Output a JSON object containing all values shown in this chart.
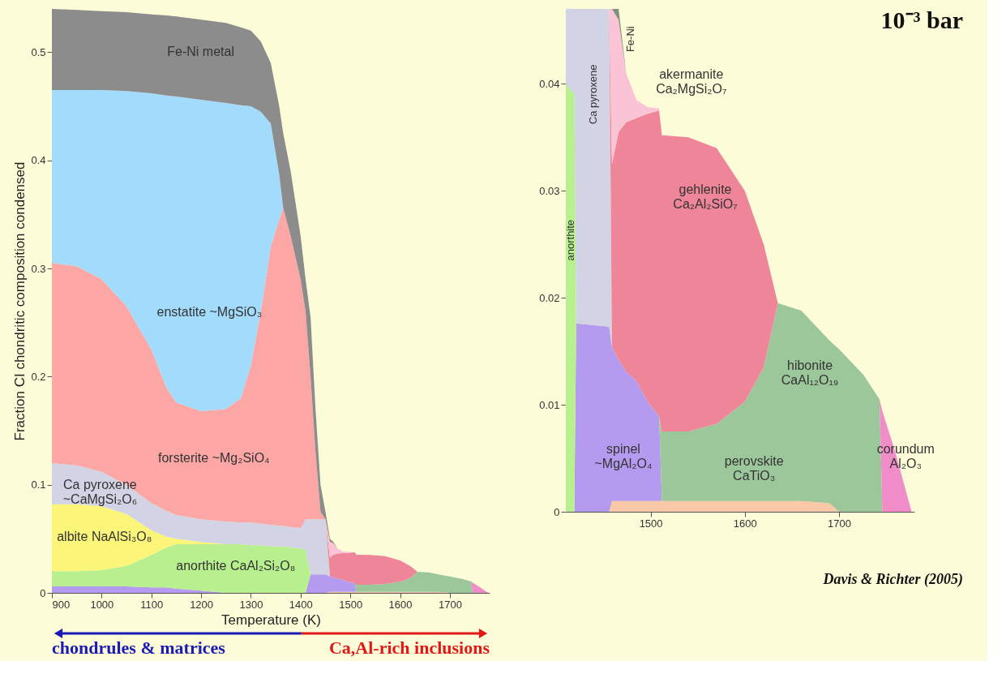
{
  "chart_data": [
    {
      "type": "area",
      "stacked": true,
      "xlabel": "Temperature (K)",
      "ylabel": "Fraction CI chondritic composition condensed",
      "x": [
        900,
        950,
        1000,
        1050,
        1100,
        1130,
        1150,
        1200,
        1250,
        1280,
        1300,
        1320,
        1340,
        1357,
        1365,
        1380,
        1400,
        1410,
        1420,
        1430,
        1440,
        1450,
        1459,
        1466,
        1474,
        1485,
        1497,
        1509,
        1512,
        1540,
        1570,
        1600,
        1620,
        1635,
        1660,
        1690,
        1700,
        1726,
        1743,
        1746,
        1760,
        1777
      ],
      "xlim": [
        900,
        1780
      ],
      "xticks": [
        900,
        1000,
        1100,
        1200,
        1300,
        1400,
        1500,
        1600,
        1700
      ],
      "ylim": [
        0,
        0.54
      ],
      "yticks": [
        0,
        0.1,
        0.2,
        0.3,
        0.4,
        0.5
      ],
      "series": [
        {
          "color": "#f8c8a8",
          "values": [
            null,
            null,
            null,
            null,
            null,
            null,
            null,
            null,
            null,
            null,
            null,
            null,
            null,
            null,
            null,
            null,
            null,
            null,
            null,
            null,
            null,
            0,
            0.001,
            0.001,
            0.001,
            0.001,
            0.001,
            0.001,
            0.001,
            0.001,
            0.001,
            0.001,
            0.001,
            0.001,
            0.001,
            0.0008,
            0,
            null,
            null,
            null,
            null,
            null
          ]
        },
        {
          "color": "#b49bef",
          "values": [
            0.006,
            0.006,
            0.006,
            0.006,
            0.005,
            0.005,
            0.004,
            0.002,
            0,
            null,
            null,
            null,
            null,
            null,
            null,
            null,
            null,
            0,
            0.017,
            0.017,
            0.017,
            0.017,
            0.0144,
            0.0132,
            0.0121,
            0.0112,
            0.0093,
            0.0079,
            0,
            null,
            null,
            null,
            null,
            null,
            null,
            null,
            null,
            null,
            null,
            null,
            null,
            null
          ]
        },
        {
          "color": "#9cc79a",
          "values": [
            null,
            null,
            null,
            null,
            null,
            null,
            null,
            null,
            null,
            null,
            null,
            null,
            null,
            null,
            null,
            null,
            null,
            null,
            null,
            null,
            null,
            null,
            null,
            null,
            null,
            null,
            null,
            0,
            0.0065,
            0.0065,
            0.0072,
            0.0093,
            0.0125,
            0.0185,
            0.0178,
            0.0152,
            0.0152,
            0.0128,
            0.0105,
            0,
            null,
            null
          ]
        },
        {
          "color": "#f08cc8",
          "values": [
            null,
            null,
            null,
            null,
            null,
            null,
            null,
            null,
            null,
            null,
            null,
            null,
            null,
            null,
            null,
            null,
            null,
            null,
            null,
            null,
            null,
            null,
            null,
            null,
            null,
            null,
            null,
            null,
            null,
            null,
            null,
            null,
            null,
            null,
            null,
            null,
            null,
            null,
            0,
            0.0094,
            0.0055,
            0
          ]
        },
        {
          "color": "#b8f08f",
          "values": [
            0.014,
            0.014,
            0.015,
            0.019,
            0.03,
            0.037,
            0.041,
            0.043,
            0.045,
            0.045,
            0.044,
            0.044,
            0.043,
            0.043,
            0.043,
            0.042,
            0.041,
            0.04,
            0,
            null,
            null,
            null,
            null,
            null,
            null,
            null,
            null,
            null,
            null,
            null,
            null,
            null,
            null,
            null,
            null,
            null,
            null,
            null,
            null,
            null,
            null,
            null
          ]
        },
        {
          "color": "#fbf57a",
          "values": [
            0.062,
            0.062,
            0.059,
            0.048,
            0.023,
            0.01,
            0.005,
            0.002,
            0,
            null,
            null,
            null,
            null,
            null,
            null,
            null,
            null,
            null,
            null,
            null,
            null,
            null,
            null,
            null,
            null,
            null,
            null,
            null,
            null,
            null,
            null,
            null,
            null,
            null,
            null,
            null,
            null,
            null,
            null,
            null,
            null,
            null
          ]
        },
        {
          "color": "#d3d3e6",
          "values": [
            0.038,
            0.036,
            0.032,
            0.027,
            0.025,
            0.024,
            0.022,
            0.021,
            0.021,
            0.02,
            0.021,
            0.02,
            0.02,
            0.019,
            0.019,
            0.019,
            0.019,
            0.028,
            0.051,
            0.051,
            0.051,
            0.051,
            0,
            null,
            null,
            null,
            null,
            null,
            null,
            null,
            null,
            null,
            null,
            null,
            null,
            null,
            null,
            null,
            null,
            null,
            null,
            null
          ]
        },
        {
          "color": "#ee8599",
          "values": [
            null,
            null,
            null,
            null,
            null,
            null,
            null,
            null,
            null,
            null,
            null,
            null,
            null,
            null,
            null,
            null,
            null,
            null,
            null,
            null,
            null,
            0,
            0.0171,
            0.0213,
            0.0233,
            0.0246,
            0.0269,
            0.0286,
            0.0277,
            0.0275,
            0.0258,
            0.0197,
            0.0115,
            0,
            null,
            null,
            null,
            null,
            null,
            null,
            null,
            null
          ]
        },
        {
          "color": "#fac3d6",
          "values": [
            null,
            null,
            null,
            null,
            null,
            null,
            null,
            null,
            null,
            null,
            null,
            null,
            null,
            null,
            null,
            null,
            null,
            null,
            null,
            null,
            null,
            0,
            0.0145,
            0.0105,
            0.0046,
            0.0017,
            0.0006,
            0.0002,
            0,
            null,
            null,
            null,
            null,
            null,
            null,
            null,
            null,
            null,
            null,
            null,
            null,
            null
          ]
        },
        {
          "color": "#fca6a6",
          "values": [
            0.185,
            0.184,
            0.178,
            0.165,
            0.142,
            0.114,
            0.104,
            0.1,
            0.104,
            0.115,
            0.145,
            0.196,
            0.257,
            0.283,
            0.294,
            0.269,
            0.23,
            0.192,
            0.132,
            0.062,
            0.007,
            0,
            null,
            null,
            null,
            null,
            null,
            null,
            null,
            null,
            null,
            null,
            null,
            null,
            null,
            null,
            null,
            null,
            null,
            null,
            null,
            null
          ]
        },
        {
          "color": "#a3dbfc",
          "values": [
            0.16,
            0.163,
            0.175,
            0.199,
            0.237,
            0.27,
            0.283,
            0.288,
            0.283,
            0.271,
            0.24,
            0.185,
            0.114,
            0.042,
            0,
            null,
            null,
            null,
            null,
            null,
            null,
            null,
            null,
            null,
            null,
            null,
            null,
            null,
            null,
            null,
            null,
            null,
            null,
            null,
            null,
            null,
            null,
            null,
            null,
            null,
            null,
            null
          ]
        },
        {
          "color": "#8c8c8c",
          "values": [
            0.075,
            0.074,
            0.073,
            0.073,
            0.073,
            0.074,
            0.074,
            0.074,
            0.074,
            0.072,
            0.07,
            0.065,
            0.056,
            0.063,
            0.069,
            0.06,
            0.04,
            0.03,
            0.055,
            0.04,
            0.025,
            0.007,
            0.003,
            0.001,
            0,
            null,
            null,
            null,
            null,
            null,
            null,
            null,
            null,
            null,
            null,
            null,
            null,
            null,
            null,
            null,
            null,
            null
          ]
        }
      ],
      "annotations": [
        "Fe-Ni metal",
        "enstatite ~MgSiO₃",
        "forsterite ~Mg₂SiO₄",
        "Ca pyroxene\n~CaMgSi₂O₆",
        "albite NaAlSi₃O₈",
        "anorthite CaAl₂Si₂O₈",
        "chondrules & matrices",
        "Ca,Al-rich inclusions"
      ]
    },
    {
      "type": "area",
      "stacked": true,
      "title": "10⁻³ bar",
      "x": [
        1410,
        1419,
        1421,
        1456,
        1459,
        1466,
        1474,
        1485,
        1497,
        1509,
        1512,
        1540,
        1570,
        1600,
        1620,
        1635,
        1660,
        1690,
        1700,
        1726,
        1743,
        1746,
        1760,
        1777
      ],
      "xlim": [
        1410,
        1780
      ],
      "xticks": [
        1500,
        1600,
        1700
      ],
      "ylim": [
        0,
        0.047
      ],
      "yticks": [
        0,
        0.01,
        0.02,
        0.03,
        0.04
      ],
      "series": [
        {
          "color": "#f8c8a8",
          "values": [
            null,
            null,
            null,
            0,
            0.001,
            0.001,
            0.001,
            0.001,
            0.001,
            0.001,
            0.001,
            0.001,
            0.001,
            0.001,
            0.001,
            0.001,
            0.001,
            0.0008,
            0,
            null,
            null,
            null,
            null,
            null
          ]
        },
        {
          "color": "#b49bef",
          "values": [
            null,
            0,
            0.0176,
            0.0173,
            0.0144,
            0.0132,
            0.0121,
            0.0112,
            0.0093,
            0.0079,
            0,
            null,
            null,
            null,
            null,
            null,
            null,
            null,
            null,
            null,
            null,
            null,
            null,
            null
          ]
        },
        {
          "color": "#9cc79a",
          "values": [
            null,
            null,
            null,
            null,
            null,
            null,
            null,
            null,
            null,
            0,
            0.0065,
            0.0065,
            0.0072,
            0.0093,
            0.0125,
            0.0185,
            0.0178,
            0.0152,
            0.0152,
            0.0128,
            0.0105,
            0,
            null,
            null
          ]
        },
        {
          "color": "#f08cc8",
          "values": [
            null,
            null,
            null,
            null,
            null,
            null,
            null,
            null,
            null,
            null,
            null,
            null,
            null,
            null,
            null,
            null,
            null,
            null,
            null,
            null,
            0,
            0.0094,
            0.0055,
            0
          ]
        },
        {
          "color": "#b8f08f",
          "values": [
            0.04,
            0.039,
            0,
            null,
            null,
            null,
            null,
            null,
            null,
            null,
            null,
            null,
            null,
            null,
            null,
            null,
            null,
            null,
            null,
            null,
            null,
            null,
            null,
            null
          ]
        },
        {
          "color": "#d3d3e6",
          "values": [
            0.007,
            0.008,
            0.0294,
            0.0297,
            0,
            null,
            null,
            null,
            null,
            null,
            null,
            null,
            null,
            null,
            null,
            null,
            null,
            null,
            null,
            null,
            null,
            null,
            null,
            null
          ]
        },
        {
          "color": "#ee8599",
          "values": [
            null,
            null,
            null,
            0,
            0.0171,
            0.0213,
            0.0233,
            0.0246,
            0.0269,
            0.0286,
            0.0277,
            0.0275,
            0.0258,
            0.0197,
            0.0115,
            0,
            null,
            null,
            null,
            null,
            null,
            null,
            null,
            null
          ]
        },
        {
          "color": "#fac3d6",
          "values": [
            null,
            null,
            null,
            0,
            0.0145,
            0.0105,
            0.0046,
            0.0017,
            0.0006,
            0.0002,
            0,
            null,
            null,
            null,
            null,
            null,
            null,
            null,
            null,
            null,
            null,
            null,
            null,
            null
          ]
        },
        {
          "color": "#7f8f80",
          "values": [
            null,
            null,
            null,
            null,
            0,
            0.001,
            0,
            null,
            null,
            null,
            null,
            null,
            null,
            null,
            null,
            null,
            null,
            null,
            null,
            null,
            null,
            null,
            null,
            null
          ]
        }
      ],
      "annotations": [
        "Fe-Ni",
        "Ca pyroxene",
        "anorthite",
        "akermanite\nCa₂MgSi₂O₇",
        "gehlenite\nCa₂Al₂SiO₇",
        "hibonite\nCaAl₁₂O₁₉",
        "spinel\n~MgAl₂O₄",
        "perovskite\nCaTiO₃",
        "corundum\nAl₂O₃",
        "Davis & Richter (2005)"
      ]
    }
  ]
}
